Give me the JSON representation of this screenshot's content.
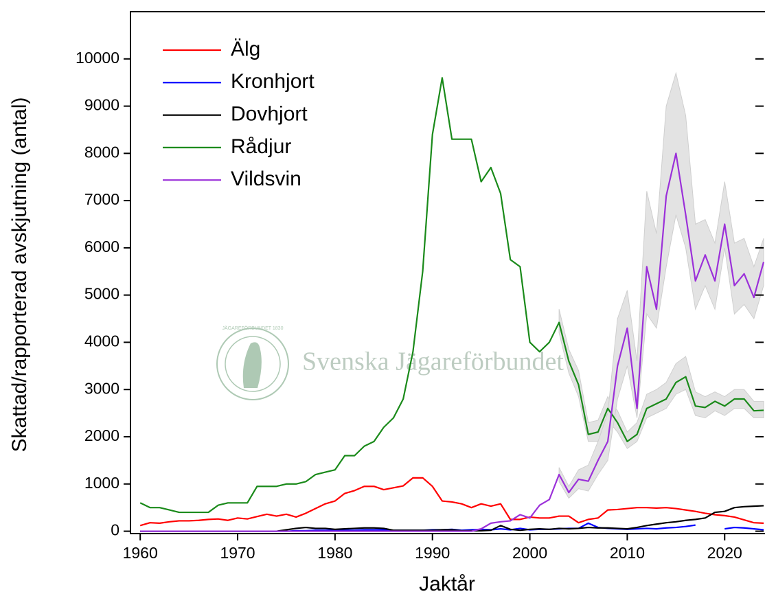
{
  "chart_data": {
    "type": "line",
    "xlabel": "Jaktår",
    "ylabel": "Skattad/rapporterad avskjutning (antal)",
    "watermark": "Svenska Jägareförbundet",
    "watermark_logo": "JÄGAREFÖRBUNDET 1830",
    "xlim": [
      1959,
      2024
    ],
    "ylim": [
      -50,
      11000
    ],
    "xticks": [
      1960,
      1970,
      1980,
      1990,
      2000,
      2010,
      2020
    ],
    "yticks": [
      0,
      1000,
      2000,
      3000,
      4000,
      5000,
      6000,
      7000,
      8000,
      9000,
      10000
    ],
    "legend": "upper-left",
    "x": [
      1960,
      1961,
      1962,
      1963,
      1964,
      1965,
      1966,
      1967,
      1968,
      1969,
      1970,
      1971,
      1972,
      1973,
      1974,
      1975,
      1976,
      1977,
      1978,
      1979,
      1980,
      1981,
      1982,
      1983,
      1984,
      1985,
      1986,
      1987,
      1988,
      1989,
      1990,
      1991,
      1992,
      1993,
      1994,
      1995,
      1996,
      1997,
      1998,
      1999,
      2000,
      2001,
      2002,
      2003,
      2004,
      2005,
      2006,
      2007,
      2008,
      2009,
      2010,
      2011,
      2012,
      2013,
      2014,
      2015,
      2016,
      2017,
      2018,
      2019,
      2020,
      2021,
      2022,
      2023,
      2024
    ],
    "band_color": "#e3e3e3",
    "series": [
      {
        "name": "Älg",
        "color": "#ff0000",
        "values": [
          120,
          180,
          170,
          200,
          220,
          220,
          230,
          250,
          260,
          230,
          280,
          260,
          310,
          360,
          320,
          360,
          300,
          380,
          480,
          580,
          640,
          800,
          860,
          950,
          950,
          880,
          920,
          960,
          1130,
          1130,
          950,
          640,
          620,
          580,
          500,
          580,
          530,
          580,
          250,
          250,
          300,
          280,
          280,
          320,
          320,
          180,
          250,
          280,
          450,
          460,
          480,
          500,
          500,
          490,
          500,
          480,
          450,
          420,
          380,
          350,
          330,
          300,
          240,
          180,
          170
        ]
      },
      {
        "name": "Kronhjort",
        "color": "#0000ff",
        "values": [
          0,
          0,
          0,
          0,
          0,
          0,
          0,
          0,
          0,
          0,
          0,
          0,
          0,
          0,
          0,
          0,
          10,
          10,
          20,
          20,
          20,
          20,
          20,
          30,
          30,
          30,
          20,
          20,
          20,
          20,
          30,
          30,
          40,
          20,
          30,
          40,
          30,
          50,
          30,
          60,
          30,
          40,
          40,
          50,
          60,
          60,
          170,
          80,
          60,
          50,
          40,
          50,
          60,
          50,
          70,
          80,
          100,
          130,
          null,
          null,
          50,
          80,
          70,
          50,
          30
        ]
      },
      {
        "name": "Dovhjort",
        "color": "#000000",
        "values": [
          0,
          0,
          0,
          0,
          0,
          0,
          0,
          0,
          0,
          0,
          0,
          0,
          0,
          0,
          0,
          30,
          60,
          80,
          60,
          60,
          40,
          50,
          60,
          70,
          70,
          60,
          20,
          20,
          20,
          20,
          20,
          30,
          30,
          10,
          10,
          10,
          20,
          120,
          40,
          20,
          40,
          50,
          40,
          60,
          50,
          60,
          80,
          70,
          70,
          60,
          50,
          80,
          120,
          150,
          180,
          200,
          230,
          250,
          280,
          400,
          420,
          500,
          520,
          530,
          540
        ]
      },
      {
        "name": "Rådjur",
        "color": "#1a8a1a",
        "values": [
          600,
          500,
          500,
          450,
          400,
          400,
          400,
          400,
          550,
          600,
          600,
          600,
          950,
          950,
          950,
          1000,
          1000,
          1050,
          1200,
          1250,
          1300,
          1600,
          1600,
          1800,
          1900,
          2200,
          2400,
          2800,
          3800,
          5500,
          8400,
          9600,
          8300,
          8300,
          8300,
          7400,
          7700,
          7150,
          5750,
          5600,
          4000,
          3800,
          4000,
          4420,
          3600,
          3100,
          2050,
          2100,
          2600,
          2300,
          1900,
          2050,
          2600,
          2700,
          2800,
          3150,
          3270,
          2650,
          2620,
          2750,
          2650,
          2800,
          2800,
          2550,
          2560
        ],
        "band": {
          "x": [
            2003,
            2004,
            2005,
            2006,
            2007,
            2008,
            2009,
            2010,
            2011,
            2012,
            2013,
            2014,
            2015,
            2016,
            2017,
            2018,
            2019,
            2020,
            2021,
            2022,
            2023,
            2024
          ],
          "upper": [
            4700,
            3850,
            3400,
            2300,
            2350,
            2850,
            2550,
            2100,
            2300,
            2900,
            3000,
            3150,
            3550,
            3700,
            2950,
            2850,
            2950,
            2850,
            3000,
            3000,
            2750,
            2750
          ],
          "lower": [
            4200,
            3350,
            2850,
            1900,
            1900,
            2350,
            2100,
            1750,
            1900,
            2400,
            2500,
            2600,
            2900,
            3000,
            2450,
            2400,
            2550,
            2450,
            2600,
            2600,
            2400,
            2400
          ]
        }
      },
      {
        "name": "Vildsvin",
        "color": "#9b30d9",
        "values": [
          0,
          0,
          0,
          0,
          0,
          0,
          0,
          0,
          0,
          0,
          0,
          0,
          0,
          0,
          0,
          0,
          0,
          0,
          0,
          0,
          0,
          0,
          0,
          0,
          0,
          0,
          0,
          0,
          0,
          0,
          0,
          0,
          0,
          0,
          0,
          50,
          170,
          200,
          220,
          350,
          280,
          550,
          670,
          1200,
          820,
          1100,
          1060,
          1500,
          1900,
          3500,
          4300,
          2600,
          5600,
          4700,
          7100,
          8000,
          6700,
          5300,
          5850,
          5300,
          6500,
          5200,
          5450,
          4950,
          5700
        ],
        "band": {
          "x": [
            2003,
            2004,
            2005,
            2006,
            2007,
            2008,
            2009,
            2010,
            2011,
            2012,
            2013,
            2014,
            2015,
            2016,
            2017,
            2018,
            2019,
            2020,
            2021,
            2022,
            2023,
            2024
          ],
          "upper": [
            1350,
            950,
            1300,
            1400,
            1900,
            2500,
            4500,
            5100,
            3600,
            7200,
            6300,
            9000,
            9700,
            8800,
            6500,
            6600,
            6100,
            7400,
            6100,
            6200,
            5600,
            6200
          ],
          "lower": [
            1050,
            700,
            900,
            850,
            1200,
            1500,
            2800,
            3500,
            2400,
            4600,
            4300,
            5600,
            6700,
            6000,
            4700,
            5200,
            4700,
            6000,
            4600,
            4800,
            4500,
            5200
          ]
        }
      }
    ]
  }
}
